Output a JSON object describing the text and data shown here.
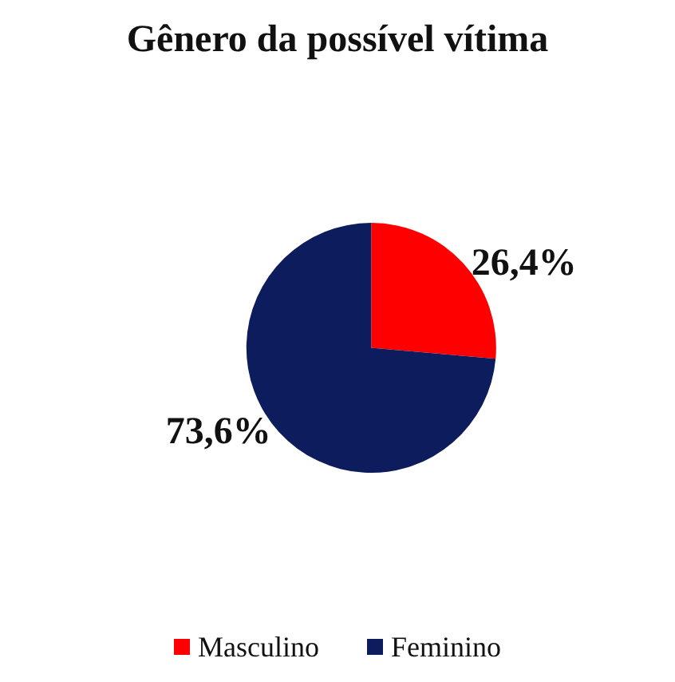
{
  "chart_data": {
    "type": "pie",
    "title": "Gênero da possível vítima",
    "categories": [
      "Masculino",
      "Feminino"
    ],
    "values": [
      26.4,
      73.6
    ],
    "colors": [
      "#ff0000",
      "#0c1c5c"
    ],
    "value_labels": [
      "26,4%",
      "73,6%"
    ],
    "legend": "bottom"
  }
}
